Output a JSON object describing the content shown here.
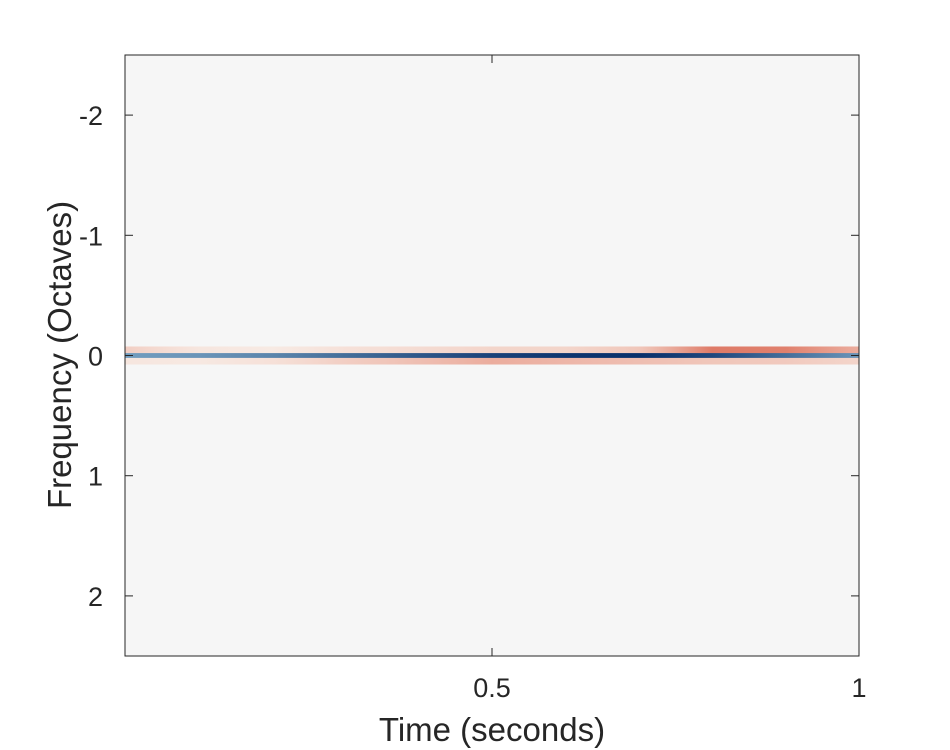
{
  "chart_data": {
    "type": "heatmap",
    "title": "",
    "xlabel": "Time (seconds)",
    "ylabel": "Frequency (Octaves)",
    "xlim": [
      0,
      1
    ],
    "ylim": [
      -2.5,
      2.5
    ],
    "y_reversed": true,
    "xticks": [
      0.5,
      1
    ],
    "xtick_labels": [
      "0.5",
      "1"
    ],
    "yticks": [
      -2,
      -1,
      0,
      1,
      2
    ],
    "ytick_labels": [
      "-2",
      "-1",
      "0",
      "1",
      "2"
    ],
    "grid": false,
    "colormap": "diverging red-white-blue",
    "background_value_color": "#f6f6f6",
    "bands": [
      {
        "name": "",
        "frequency": 0.0,
        "half_width_octaves": 0.02,
        "sign": "negative",
        "color_low": "#9ecae1",
        "color_high": "#08306b",
        "time": [
          0.0,
          0.1,
          0.2,
          0.3,
          0.4,
          0.5,
          0.6,
          0.7,
          0.8,
          0.9,
          1.0
        ],
        "magnitude": [
          0.3,
          0.35,
          0.45,
          0.6,
          0.75,
          0.88,
          0.97,
          1.0,
          0.85,
          0.6,
          0.35
        ]
      },
      {
        "name": "",
        "frequency": -0.045,
        "half_width_octaves": 0.03,
        "sign": "positive",
        "color_low": "#fde0ce",
        "color_high": "#d6604d",
        "time": [
          0.0,
          0.1,
          0.2,
          0.3,
          0.4,
          0.5,
          0.6,
          0.7,
          0.8,
          0.9,
          1.0
        ],
        "magnitude": [
          0.35,
          0.15,
          0.1,
          0.2,
          0.25,
          0.3,
          0.3,
          0.4,
          0.8,
          0.75,
          0.55
        ]
      },
      {
        "name": "",
        "frequency": 0.045,
        "half_width_octaves": 0.03,
        "sign": "positive",
        "color_low": "#fde0ce",
        "color_high": "#d6604d",
        "time": [
          0.0,
          0.1,
          0.2,
          0.3,
          0.4,
          0.5,
          0.6,
          0.7,
          0.8,
          0.9,
          1.0
        ],
        "magnitude": [
          0.15,
          0.12,
          0.2,
          0.35,
          0.45,
          0.55,
          0.5,
          0.45,
          0.4,
          0.38,
          0.3
        ]
      }
    ]
  }
}
